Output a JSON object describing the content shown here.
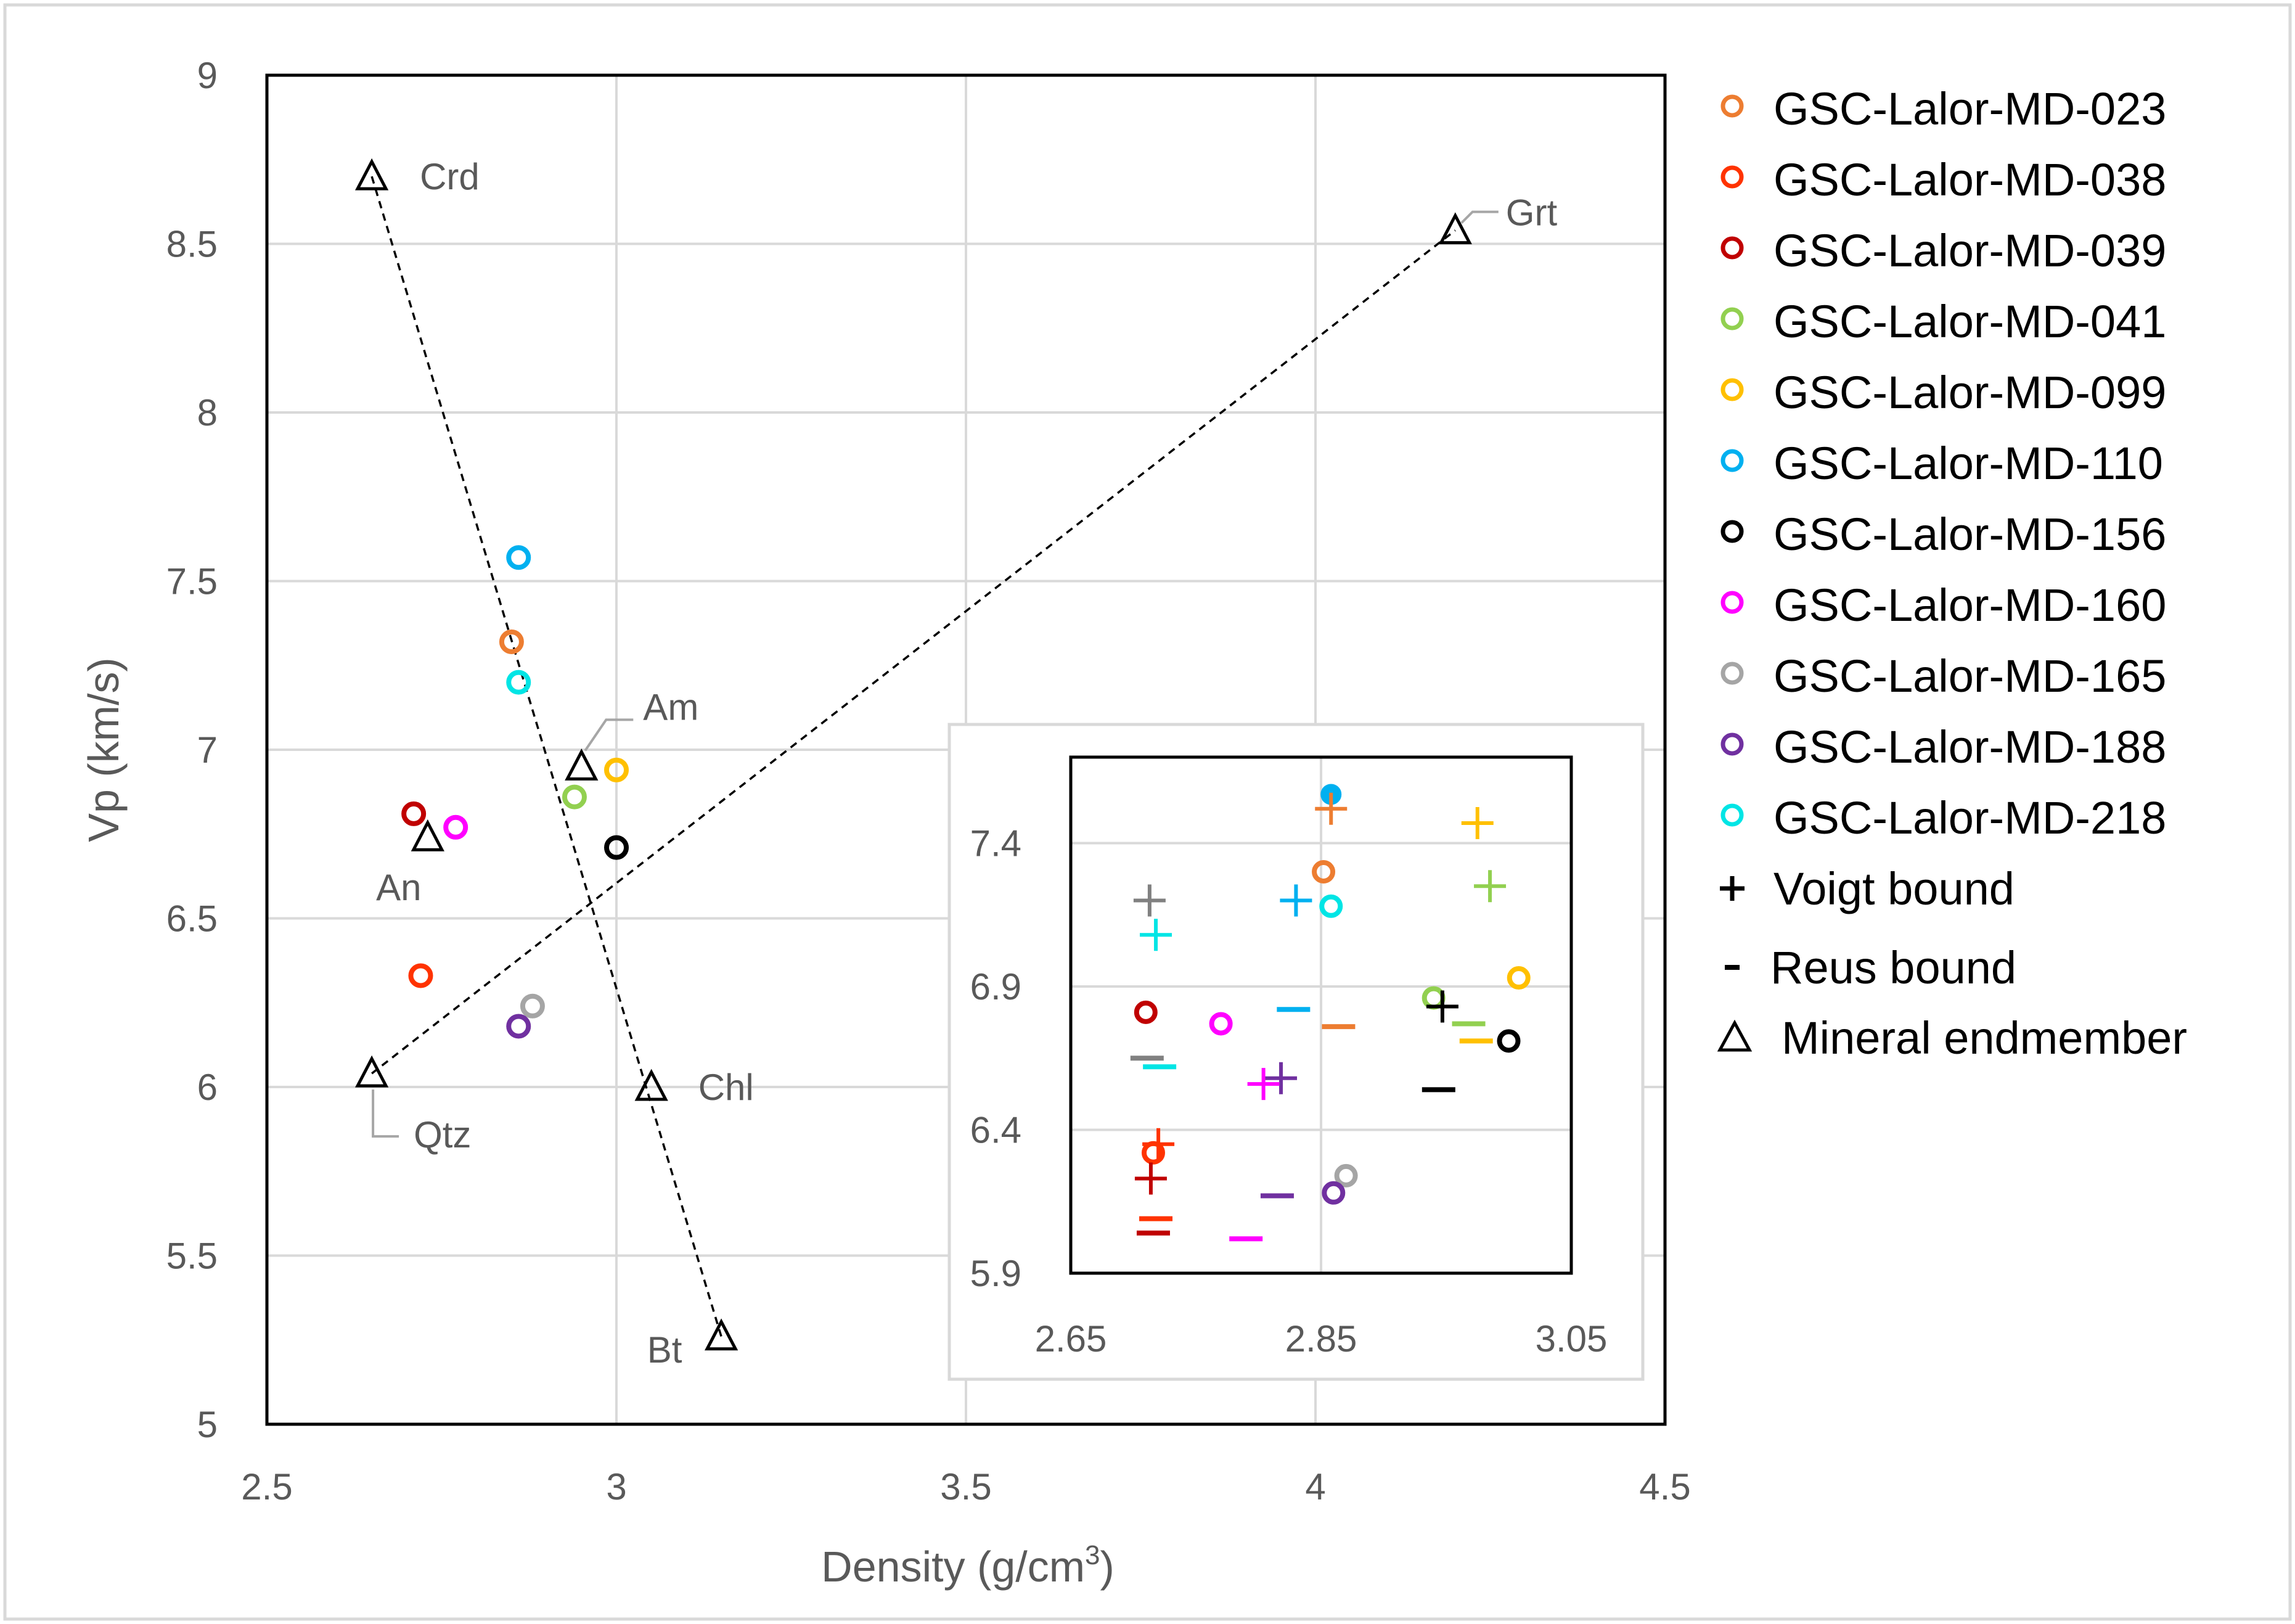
{
  "chart_data": {
    "type": "scatter",
    "title": "",
    "xlabel": "Density (g/cm",
    "xlabel_sup": "3",
    "xlabel_end": ")",
    "ylabel": "Vp (km/s)",
    "xlim": [
      2.5,
      4.5
    ],
    "ylim": [
      5,
      9
    ],
    "xticks": [
      "2.5",
      "3",
      "3.5",
      "4",
      "4.5"
    ],
    "yticks": [
      "5",
      "5.5",
      "6",
      "6.5",
      "7",
      "7.5",
      "8",
      "8.5",
      "9"
    ],
    "grid": true,
    "legend_position": "right",
    "samples": [
      {
        "name": "GSC-Lalor-MD-023",
        "color": "#ED7D31",
        "x": 2.85,
        "y": 7.32
      },
      {
        "name": "GSC-Lalor-MD-038",
        "color": "#FF3300",
        "x": 2.72,
        "y": 6.33
      },
      {
        "name": "GSC-Lalor-MD-039",
        "color": "#C00000",
        "x": 2.71,
        "y": 6.81
      },
      {
        "name": "GSC-Lalor-MD-041",
        "color": "#92D050",
        "x": 2.94,
        "y": 6.86
      },
      {
        "name": "GSC-Lalor-MD-099",
        "color": "#FFC000",
        "x": 3.0,
        "y": 6.94
      },
      {
        "name": "GSC-Lalor-MD-110",
        "color": "#00B0F0",
        "x": 2.86,
        "y": 7.57
      },
      {
        "name": "GSC-Lalor-MD-156",
        "color": "#000000",
        "x": 3.0,
        "y": 6.71
      },
      {
        "name": "GSC-Lalor-MD-160",
        "color": "#FF00FF",
        "x": 2.77,
        "y": 6.77
      },
      {
        "name": "GSC-Lalor-MD-165",
        "color": "#A5A5A5",
        "x": 2.88,
        "y": 6.24
      },
      {
        "name": "GSC-Lalor-MD-188",
        "color": "#7030A0",
        "x": 2.86,
        "y": 6.18
      },
      {
        "name": "GSC-Lalor-MD-218",
        "color": "#00E5E5",
        "x": 2.86,
        "y": 7.2
      }
    ],
    "endmembers": [
      {
        "label": "Crd",
        "x": 2.65,
        "y": 8.7
      },
      {
        "label": "Grt",
        "x": 4.2,
        "y": 8.54
      },
      {
        "label": "Am",
        "x": 2.95,
        "y": 6.95
      },
      {
        "label": "An",
        "x": 2.73,
        "y": 6.74
      },
      {
        "label": "Qtz",
        "x": 2.65,
        "y": 6.04
      },
      {
        "label": "Chl",
        "x": 3.05,
        "y": 6.0
      },
      {
        "label": "Bt",
        "x": 3.15,
        "y": 5.26
      }
    ],
    "mixing_lines": [
      {
        "from": "Crd",
        "to": "Bt"
      },
      {
        "from": "Qtz",
        "to": "Grt"
      }
    ],
    "legend_extra": [
      {
        "symbol": "voigt",
        "label": "Voigt bound"
      },
      {
        "symbol": "reuss",
        "label": "Reus bound"
      },
      {
        "symbol": "triangle",
        "label": "Mineral endmember"
      }
    ],
    "inset": {
      "xlim": [
        2.65,
        3.05
      ],
      "ylim": [
        5.9,
        7.7
      ],
      "xticks": [
        "2.65",
        "2.85",
        "3.05"
      ],
      "yticks": [
        "5.9",
        "6.4",
        "6.9",
        "7.4"
      ],
      "points": [
        {
          "sample": "GSC-Lalor-MD-110",
          "color": "#00B0F0",
          "marker": "dot",
          "x": 2.858,
          "y": 7.57
        },
        {
          "sample": "GSC-Lalor-MD-023",
          "color": "#ED7D31",
          "marker": "plus",
          "x": 2.858,
          "y": 7.52
        },
        {
          "sample": "GSC-Lalor-MD-099",
          "color": "#FFC000",
          "marker": "plus",
          "x": 2.975,
          "y": 7.47
        },
        {
          "sample": "GSC-Lalor-MD-023",
          "color": "#ED7D31",
          "marker": "circle",
          "x": 2.852,
          "y": 7.3
        },
        {
          "sample": "GSC-Lalor-MD-041",
          "color": "#92D050",
          "marker": "plus",
          "x": 2.985,
          "y": 7.25
        },
        {
          "sample": "GSC-Lalor-MD-165",
          "color": "#808080",
          "marker": "plus",
          "x": 2.713,
          "y": 7.2
        },
        {
          "sample": "GSC-Lalor-MD-110",
          "color": "#00B0F0",
          "marker": "plus",
          "x": 2.83,
          "y": 7.2
        },
        {
          "sample": "GSC-Lalor-MD-218",
          "color": "#00E5E5",
          "marker": "circle",
          "x": 2.858,
          "y": 7.18
        },
        {
          "sample": "GSC-Lalor-MD-218",
          "color": "#00E5E5",
          "marker": "plus",
          "x": 2.718,
          "y": 7.08
        },
        {
          "sample": "GSC-Lalor-MD-099",
          "color": "#FFC000",
          "marker": "circle",
          "x": 3.008,
          "y": 6.93
        },
        {
          "sample": "GSC-Lalor-MD-041",
          "color": "#92D050",
          "marker": "circle",
          "x": 2.94,
          "y": 6.86
        },
        {
          "sample": "GSC-Lalor-MD-156",
          "color": "#000000",
          "marker": "plus",
          "x": 2.947,
          "y": 6.83
        },
        {
          "sample": "GSC-Lalor-MD-110",
          "color": "#00B0F0",
          "marker": "dash",
          "x": 2.828,
          "y": 6.82
        },
        {
          "sample": "GSC-Lalor-MD-039",
          "color": "#C00000",
          "marker": "circle",
          "x": 2.71,
          "y": 6.81
        },
        {
          "sample": "GSC-Lalor-MD-160",
          "color": "#FF00FF",
          "marker": "circle",
          "x": 2.77,
          "y": 6.77
        },
        {
          "sample": "GSC-Lalor-MD-041",
          "color": "#92D050",
          "marker": "dash",
          "x": 2.968,
          "y": 6.77
        },
        {
          "sample": "GSC-Lalor-MD-023",
          "color": "#ED7D31",
          "marker": "dash",
          "x": 2.864,
          "y": 6.76
        },
        {
          "sample": "GSC-Lalor-MD-156",
          "color": "#000000",
          "marker": "circle",
          "x": 3.0,
          "y": 6.71
        },
        {
          "sample": "GSC-Lalor-MD-099",
          "color": "#FFC000",
          "marker": "dash",
          "x": 2.974,
          "y": 6.71
        },
        {
          "sample": "GSC-Lalor-MD-165",
          "color": "#808080",
          "marker": "dash",
          "x": 2.711,
          "y": 6.65
        },
        {
          "sample": "GSC-Lalor-MD-218",
          "color": "#00E5E5",
          "marker": "dash",
          "x": 2.721,
          "y": 6.62
        },
        {
          "sample": "GSC-Lalor-MD-188",
          "color": "#7030A0",
          "marker": "plus",
          "x": 2.818,
          "y": 6.58
        },
        {
          "sample": "GSC-Lalor-MD-160",
          "color": "#FF00FF",
          "marker": "plus",
          "x": 2.804,
          "y": 6.56
        },
        {
          "sample": "GSC-Lalor-MD-156",
          "color": "#000000",
          "marker": "dash",
          "x": 2.944,
          "y": 6.54
        },
        {
          "sample": "GSC-Lalor-MD-038",
          "color": "#FF3300",
          "marker": "plus",
          "x": 2.72,
          "y": 6.35
        },
        {
          "sample": "GSC-Lalor-MD-038",
          "color": "#FF3300",
          "marker": "circle",
          "x": 2.716,
          "y": 6.32
        },
        {
          "sample": "GSC-Lalor-MD-039",
          "color": "#C00000",
          "marker": "plus",
          "x": 2.714,
          "y": 6.23
        },
        {
          "sample": "GSC-Lalor-MD-165",
          "color": "#A5A5A5",
          "marker": "circle",
          "x": 2.87,
          "y": 6.24
        },
        {
          "sample": "GSC-Lalor-MD-188",
          "color": "#7030A0",
          "marker": "circle",
          "x": 2.86,
          "y": 6.18
        },
        {
          "sample": "GSC-Lalor-MD-188",
          "color": "#7030A0",
          "marker": "dash",
          "x": 2.815,
          "y": 6.17
        },
        {
          "sample": "GSC-Lalor-MD-038",
          "color": "#FF3300",
          "marker": "dash",
          "x": 2.718,
          "y": 6.09
        },
        {
          "sample": "GSC-Lalor-MD-039",
          "color": "#C00000",
          "marker": "dash",
          "x": 2.716,
          "y": 6.04
        },
        {
          "sample": "GSC-Lalor-MD-160",
          "color": "#FF00FF",
          "marker": "dash",
          "x": 2.79,
          "y": 6.02
        }
      ]
    }
  }
}
